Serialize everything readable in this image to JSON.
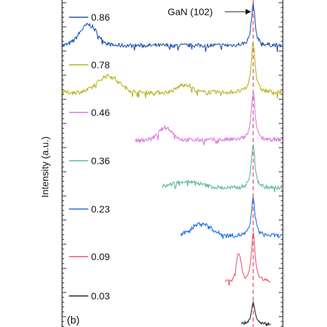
{
  "chart_data": {
    "type": "line",
    "panel_label": "(b)",
    "ylabel": "Intensity (a.u.)",
    "annotation": "GaN (102)",
    "grid": false,
    "legend_placement": "inline-left",
    "series": [
      {
        "name": "0.86",
        "color": "#1a4fb0",
        "broad_peak_x": 128,
        "broad_amp": 30,
        "broad_w": 18,
        "x_start": 90,
        "x_end": 408,
        "noise": 3
      },
      {
        "name": "0.78",
        "color": "#b7b21b",
        "broad_peak_x": 157,
        "broad_amp": 24,
        "broad_w": 22,
        "x_start": 90,
        "x_end": 408,
        "noise": 3,
        "bump2_x": 268,
        "bump2_amp": 12,
        "bump2_w": 14
      },
      {
        "name": "0.46",
        "color": "#d978e0",
        "broad_peak_x": 240,
        "broad_amp": 18,
        "broad_w": 14,
        "x_start": 196,
        "x_end": 408,
        "noise": 3
      },
      {
        "name": "0.36",
        "color": "#5ab59f",
        "broad_peak_x": 270,
        "broad_amp": 10,
        "broad_w": 30,
        "x_start": 235,
        "x_end": 408,
        "noise": 3
      },
      {
        "name": "0.23",
        "color": "#1b6fe0",
        "broad_peak_x": 292,
        "broad_amp": 18,
        "broad_w": 20,
        "x_start": 262,
        "x_end": 408,
        "noise": 3
      },
      {
        "name": "0.09",
        "color": "#ea5369",
        "broad_peak_x": 346,
        "broad_amp": 40,
        "broad_w": 5,
        "x_start": 326,
        "x_end": 392,
        "noise": 2
      },
      {
        "name": "0.03",
        "color": "#222222",
        "broad_peak_x": 0,
        "broad_amp": 0,
        "broad_w": 1,
        "x_start": 350,
        "x_end": 392,
        "noise": 2
      }
    ],
    "reference_peak": {
      "label": "GaN (102)",
      "x": 367,
      "color": "#e24a6a"
    }
  }
}
